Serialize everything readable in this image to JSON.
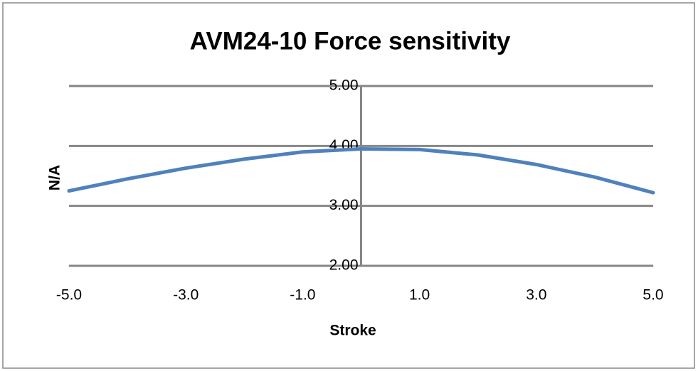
{
  "chart_data": {
    "type": "line",
    "title": "AVM24-10 Force sensitivity",
    "x_label": "Stroke",
    "y_label": "N/A",
    "x": [
      -5,
      -4,
      -3,
      -2,
      -1,
      0,
      1,
      2,
      3,
      4,
      5
    ],
    "series": [
      {
        "name": "Force sensitivity",
        "color": "#4f81bd",
        "values": [
          3.25,
          3.45,
          3.63,
          3.78,
          3.9,
          3.95,
          3.94,
          3.85,
          3.69,
          3.48,
          3.22
        ]
      }
    ],
    "xlim": [
      -5,
      5
    ],
    "xticks": [
      {
        "value": -5,
        "label": "-5.0"
      },
      {
        "value": -3,
        "label": "-3.0"
      },
      {
        "value": -1,
        "label": "-1.0"
      },
      {
        "value": 1,
        "label": "1.0"
      },
      {
        "value": 3,
        "label": "3.0"
      },
      {
        "value": 5,
        "label": "5.0"
      }
    ],
    "ylim": [
      2,
      5
    ],
    "yticks": [
      {
        "value": 2,
        "label": "2.00"
      },
      {
        "value": 3,
        "label": "3.00"
      },
      {
        "value": 4,
        "label": "4.00"
      },
      {
        "value": 5,
        "label": "5.00"
      }
    ],
    "grid": true
  }
}
